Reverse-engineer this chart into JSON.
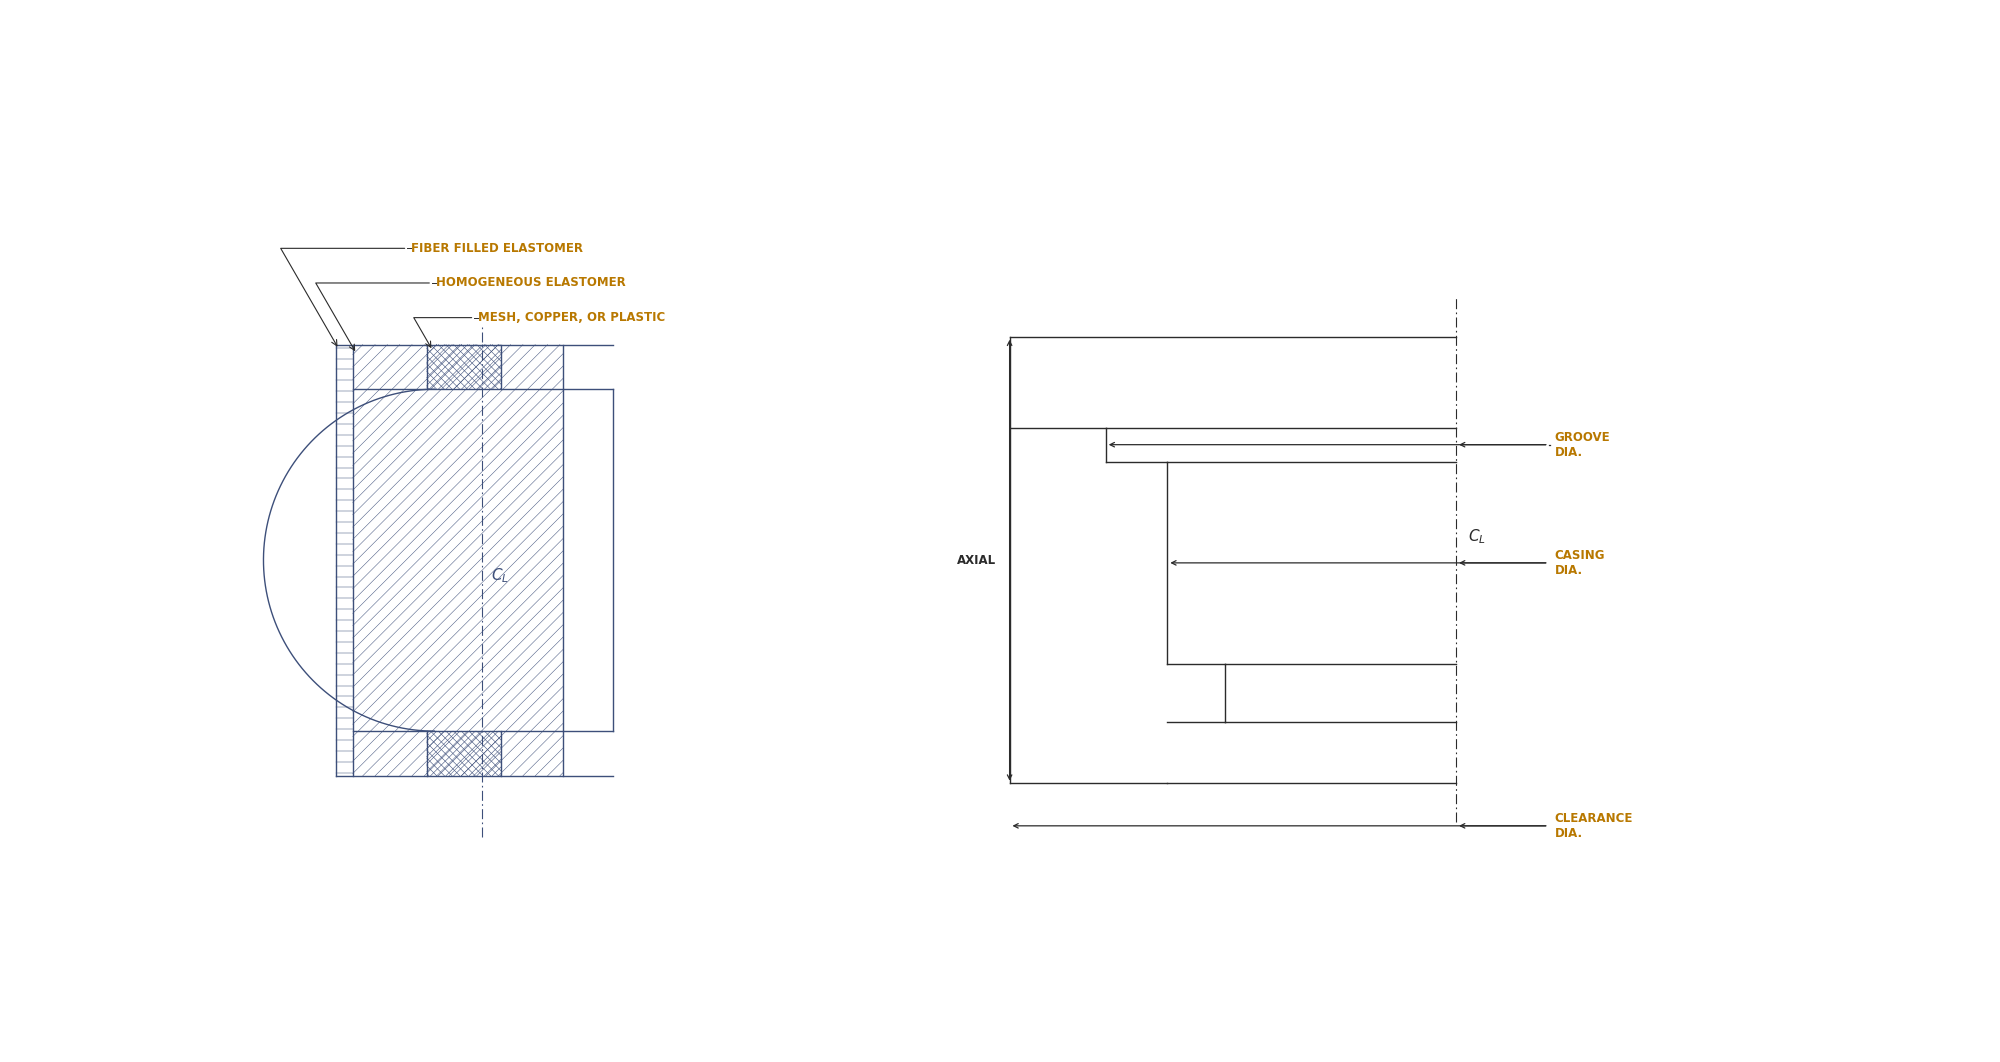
{
  "bg_color": "#ffffff",
  "line_color": "#3d4f7a",
  "dim_color": "#2b2b2b",
  "text_orange": "#b87800",
  "text_dim": "#2b2b2b",
  "label1": "FIBER FILLED ELASTOMER",
  "label2": "HOMOGENEOUS ELASTOMER",
  "label3": "MESH, COPPER, OR PLASTIC",
  "label_axial": "AXIAL",
  "label_groove": "GROOVE\nDIA.",
  "label_casing": "CASING\nDIA.",
  "label_clearance": "CLEARANCE\nDIA.",
  "lw_main": 1.0,
  "lw_hatch": 0.5,
  "fs_label": 8.5,
  "fs_cl": 11,
  "fs_dim": 8.5
}
